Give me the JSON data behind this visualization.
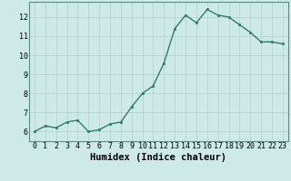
{
  "xlabel": "Humidex (Indice chaleur)",
  "x_values": [
    0,
    1,
    2,
    3,
    4,
    5,
    6,
    7,
    8,
    9,
    10,
    11,
    12,
    13,
    14,
    15,
    16,
    17,
    18,
    19,
    20,
    21,
    22,
    23
  ],
  "y_values": [
    6.0,
    6.3,
    6.2,
    6.5,
    6.6,
    6.0,
    6.1,
    6.4,
    6.5,
    7.3,
    8.0,
    8.4,
    9.6,
    11.4,
    12.1,
    11.7,
    12.4,
    12.1,
    12.0,
    11.6,
    11.2,
    10.7,
    10.7,
    10.6
  ],
  "line_color": "#2e7d6e",
  "marker": "s",
  "marker_size": 2.0,
  "line_width": 1.0,
  "bg_color": "#ceeae8",
  "grid_color": "#b8d4d0",
  "xlim": [
    -0.5,
    23.5
  ],
  "ylim": [
    5.5,
    12.8
  ],
  "yticks": [
    6,
    7,
    8,
    9,
    10,
    11,
    12
  ],
  "xticks": [
    0,
    1,
    2,
    3,
    4,
    5,
    6,
    7,
    8,
    9,
    10,
    11,
    12,
    13,
    14,
    15,
    16,
    17,
    18,
    19,
    20,
    21,
    22,
    23
  ],
  "tick_fontsize": 6,
  "xlabel_fontsize": 7.5,
  "spine_color": "#5a8a84"
}
